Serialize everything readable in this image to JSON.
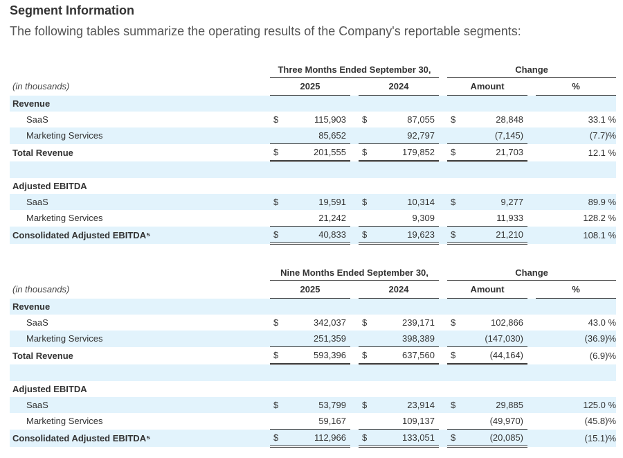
{
  "heading": "Segment Information",
  "intro": "The following tables summarize the operating results of the Company's reportable segments:",
  "tables": [
    {
      "period": "Three Months Ended September 30,",
      "change": "Change",
      "units": "(in thousands)",
      "year1": "2025",
      "year2": "2024",
      "amount": "Amount",
      "percent": "%",
      "revenue_label": "Revenue",
      "saas": {
        "label": "SaaS",
        "d": "$",
        "v1": "115,903",
        "v2": "87,055",
        "amt": "28,848",
        "pct": "33.1 %"
      },
      "marketing": {
        "label": "Marketing Services",
        "v1": "85,652",
        "v2": "92,797",
        "amt": "(7,145)",
        "pct": "(7.7)%"
      },
      "total": {
        "label": "Total Revenue",
        "d": "$",
        "v1": "201,555",
        "v2": "179,852",
        "amt": "21,703",
        "pct": "12.1 %"
      },
      "ebitda_label": "Adjusted EBITDA",
      "e_saas": {
        "label": "SaaS",
        "d": "$",
        "v1": "19,591",
        "v2": "10,314",
        "amt": "9,277",
        "pct": "89.9 %"
      },
      "e_marketing": {
        "label": "Marketing Services",
        "v1": "21,242",
        "v2": "9,309",
        "amt": "11,933",
        "pct": "128.2 %"
      },
      "consolidated": {
        "label": "Consolidated Adjusted EBITDA⁵",
        "d": "$",
        "v1": "40,833",
        "v2": "19,623",
        "amt": "21,210",
        "pct": "108.1 %"
      }
    },
    {
      "period": "Nine Months Ended September 30,",
      "change": "Change",
      "units": "(in thousands)",
      "year1": "2025",
      "year2": "2024",
      "amount": "Amount",
      "percent": "%",
      "revenue_label": "Revenue",
      "saas": {
        "label": "SaaS",
        "d": "$",
        "v1": "342,037",
        "v2": "239,171",
        "amt": "102,866",
        "pct": "43.0 %"
      },
      "marketing": {
        "label": "Marketing Services",
        "v1": "251,359",
        "v2": "398,389",
        "amt": "(147,030)",
        "pct": "(36.9)%"
      },
      "total": {
        "label": "Total Revenue",
        "d": "$",
        "v1": "593,396",
        "v2": "637,560",
        "amt": "(44,164)",
        "pct": "(6.9)%"
      },
      "ebitda_label": "Adjusted EBITDA",
      "e_saas": {
        "label": "SaaS",
        "d": "$",
        "v1": "53,799",
        "v2": "23,914",
        "amt": "29,885",
        "pct": "125.0 %"
      },
      "e_marketing": {
        "label": "Marketing Services",
        "v1": "59,167",
        "v2": "109,137",
        "amt": "(49,970)",
        "pct": "(45.8)%"
      },
      "consolidated": {
        "label": "Consolidated Adjusted EBITDA⁵",
        "d": "$",
        "v1": "112,966",
        "v2": "133,051",
        "amt": "(20,085)",
        "pct": "(15.1)%"
      }
    }
  ]
}
